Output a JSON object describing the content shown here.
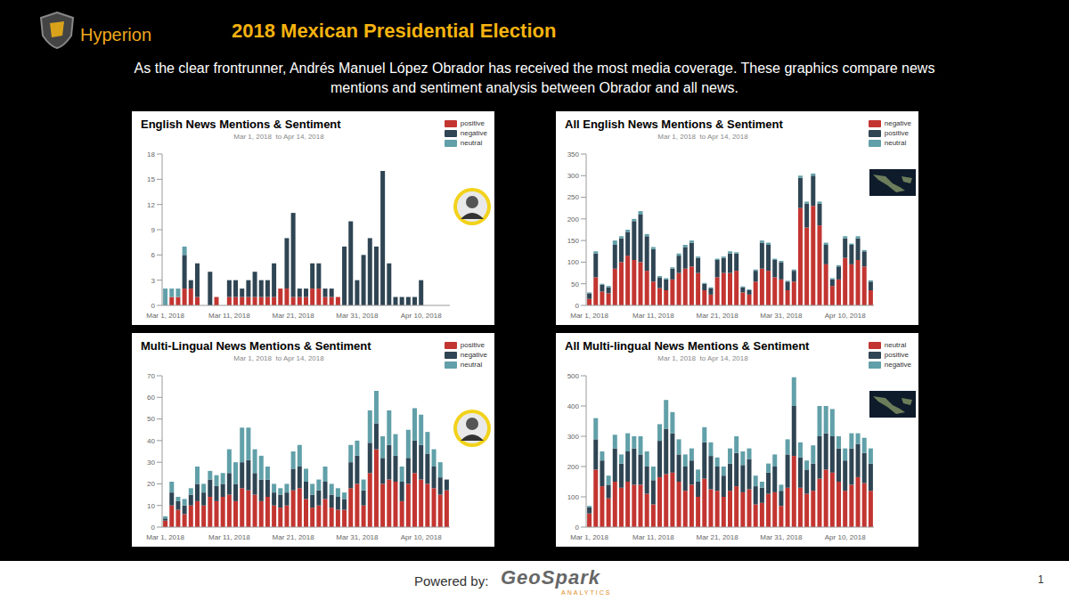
{
  "header": {
    "brand": "Hyperion",
    "title": "2018 Mexican Presidential Election",
    "subtitle": "As the clear frontrunner, Andrés Manuel López Obrador has received the most media coverage. These graphics compare news mentions and sentiment analysis between Obrador and all news."
  },
  "chart_data": [
    {
      "type": "bar",
      "title": "English News Mentions & Sentiment",
      "subtitle": "Mar 1, 2018  to Apr 14, 2018",
      "stacked": true,
      "grid": false,
      "legend": "top-right",
      "categories": [
        "Mar 1, 2018",
        null,
        null,
        null,
        null,
        null,
        null,
        null,
        null,
        null,
        "Mar 11, 2018",
        null,
        null,
        null,
        null,
        null,
        null,
        null,
        null,
        null,
        "Mar 21, 2018",
        null,
        null,
        null,
        null,
        null,
        null,
        null,
        null,
        null,
        "Mar 31, 2018",
        null,
        null,
        null,
        null,
        null,
        null,
        null,
        null,
        null,
        "Apr 10, 2018",
        null,
        null,
        null,
        null
      ],
      "series": [
        {
          "name": "positive",
          "color": "#c23531",
          "values": [
            0,
            1,
            1,
            2,
            2,
            1,
            0,
            0,
            1,
            0,
            1,
            1,
            1,
            1,
            1,
            1,
            1,
            1,
            2,
            2,
            1,
            1,
            1,
            2,
            2,
            1,
            1,
            1,
            0,
            0,
            0,
            0,
            0,
            0,
            0,
            0,
            0,
            0,
            0,
            0,
            0,
            0,
            0,
            0,
            0
          ]
        },
        {
          "name": "negative",
          "color": "#2f4554",
          "values": [
            0,
            0,
            0,
            4,
            1,
            4,
            0,
            4,
            0,
            0,
            2,
            2,
            1,
            2,
            3,
            2,
            2,
            4,
            0,
            6,
            10,
            1,
            1,
            3,
            3,
            1,
            1,
            0,
            7,
            10,
            3,
            6,
            8,
            7,
            16,
            5,
            1,
            1,
            1,
            1,
            3,
            0,
            0,
            0,
            0
          ]
        },
        {
          "name": "neutral",
          "color": "#61a0a8",
          "values": [
            2,
            1,
            1,
            1,
            0,
            0,
            0,
            0,
            0,
            0,
            0,
            0,
            0,
            0,
            0,
            0,
            0,
            0,
            0,
            0,
            0,
            0,
            0,
            0,
            0,
            0,
            0,
            0,
            0,
            0,
            0,
            0,
            0,
            0,
            0,
            0,
            0,
            0,
            0,
            0,
            0,
            0,
            0,
            0,
            0
          ]
        }
      ],
      "ylim": [
        0,
        18
      ],
      "yticks": [
        0,
        3,
        6,
        9,
        12,
        15,
        18
      ]
    },
    {
      "type": "bar",
      "title": "All English News Mentions & Sentiment",
      "subtitle": "Mar 1, 2018  to Apr 14, 2018",
      "stacked": true,
      "grid": false,
      "legend": "top-right",
      "categories": [
        "Mar 1, 2018",
        null,
        null,
        null,
        null,
        null,
        null,
        null,
        null,
        null,
        "Mar 11, 2018",
        null,
        null,
        null,
        null,
        null,
        null,
        null,
        null,
        null,
        "Mar 21, 2018",
        null,
        null,
        null,
        null,
        null,
        null,
        null,
        null,
        null,
        "Mar 31, 2018",
        null,
        null,
        null,
        null,
        null,
        null,
        null,
        null,
        null,
        "Apr 10, 2018",
        null,
        null,
        null,
        null
      ],
      "series": [
        {
          "name": "negative",
          "color": "#c23531",
          "values": [
            15,
            65,
            32,
            28,
            85,
            100,
            115,
            105,
            100,
            80,
            55,
            40,
            35,
            60,
            75,
            85,
            90,
            75,
            35,
            25,
            65,
            75,
            75,
            80,
            30,
            25,
            55,
            85,
            80,
            65,
            60,
            35,
            55,
            225,
            180,
            230,
            185,
            95,
            45,
            60,
            110,
            95,
            105,
            90,
            35
          ]
        },
        {
          "name": "positive",
          "color": "#2f4554",
          "values": [
            13,
            55,
            16,
            14,
            55,
            55,
            55,
            90,
            110,
            80,
            75,
            25,
            25,
            25,
            40,
            50,
            55,
            35,
            15,
            15,
            40,
            35,
            45,
            40,
            12,
            10,
            25,
            60,
            60,
            40,
            40,
            20,
            25,
            70,
            55,
            70,
            50,
            45,
            15,
            30,
            45,
            45,
            50,
            35,
            20
          ]
        },
        {
          "name": "neutral",
          "color": "#61a0a8",
          "values": [
            2,
            5,
            2,
            3,
            10,
            5,
            5,
            5,
            8,
            5,
            5,
            3,
            3,
            3,
            5,
            5,
            5,
            3,
            2,
            2,
            3,
            3,
            5,
            3,
            2,
            2,
            3,
            5,
            5,
            3,
            3,
            2,
            3,
            5,
            5,
            5,
            5,
            5,
            3,
            3,
            5,
            3,
            5,
            3,
            3
          ]
        }
      ],
      "ylim": [
        0,
        350
      ],
      "yticks": [
        0,
        50,
        100,
        150,
        200,
        250,
        300,
        350
      ]
    },
    {
      "type": "bar",
      "title": "Multi-Lingual News Mentions & Sentiment",
      "subtitle": "Mar 1, 2018  to Apr 14, 2018",
      "stacked": true,
      "grid": false,
      "legend": "top-right",
      "categories": [
        "Mar 1, 2018",
        null,
        null,
        null,
        null,
        null,
        null,
        null,
        null,
        null,
        "Mar 11, 2018",
        null,
        null,
        null,
        null,
        null,
        null,
        null,
        null,
        null,
        "Mar 21, 2018",
        null,
        null,
        null,
        null,
        null,
        null,
        null,
        null,
        null,
        "Mar 31, 2018",
        null,
        null,
        null,
        null,
        null,
        null,
        null,
        null,
        null,
        "Apr 10, 2018",
        null,
        null,
        null,
        null
      ],
      "series": [
        {
          "name": "positive",
          "color": "#c23531",
          "values": [
            3,
            10,
            8,
            6,
            10,
            12,
            10,
            14,
            12,
            14,
            15,
            12,
            18,
            17,
            15,
            12,
            14,
            10,
            9,
            10,
            17,
            18,
            13,
            9,
            10,
            13,
            9,
            8,
            8,
            18,
            20,
            10,
            25,
            36,
            20,
            22,
            21,
            12,
            20,
            25,
            22,
            20,
            18,
            15,
            17
          ]
        },
        {
          "name": "negative",
          "color": "#2f4554",
          "values": [
            1,
            6,
            4,
            4,
            5,
            8,
            6,
            8,
            7,
            6,
            10,
            8,
            12,
            14,
            10,
            10,
            8,
            6,
            6,
            6,
            10,
            10,
            8,
            6,
            7,
            8,
            6,
            6,
            5,
            12,
            13,
            7,
            14,
            12,
            12,
            16,
            12,
            9,
            12,
            15,
            16,
            14,
            10,
            8,
            5
          ]
        },
        {
          "name": "neutral",
          "color": "#61a0a8",
          "values": [
            1,
            5,
            2,
            3,
            3,
            8,
            4,
            4,
            5,
            5,
            11,
            10,
            16,
            15,
            11,
            11,
            6,
            4,
            3,
            4,
            8,
            10,
            6,
            5,
            5,
            7,
            5,
            4,
            3,
            8,
            7,
            5,
            15,
            15,
            10,
            16,
            10,
            7,
            13,
            15,
            14,
            10,
            8,
            7,
            0
          ]
        }
      ],
      "ylim": [
        0,
        70
      ],
      "yticks": [
        0,
        10,
        20,
        30,
        40,
        50,
        60,
        70
      ]
    },
    {
      "type": "bar",
      "title": "All Multi-lingual News Mentions & Sentiment",
      "subtitle": "Mar 1, 2018  to Apr 14, 2018",
      "stacked": true,
      "grid": false,
      "legend": "top-right",
      "categories": [
        "Mar 1, 2018",
        null,
        null,
        null,
        null,
        null,
        null,
        null,
        null,
        null,
        "Mar 11, 2018",
        null,
        null,
        null,
        null,
        null,
        null,
        null,
        null,
        null,
        "Mar 21, 2018",
        null,
        null,
        null,
        null,
        null,
        null,
        null,
        null,
        null,
        "Mar 31, 2018",
        null,
        null,
        null,
        null,
        null,
        null,
        null,
        null,
        null,
        "Apr 10, 2018",
        null,
        null,
        null,
        null
      ],
      "series": [
        {
          "name": "neutral",
          "color": "#c23531",
          "values": [
            45,
            190,
            135,
            95,
            150,
            130,
            150,
            140,
            140,
            110,
            75,
            165,
            175,
            180,
            150,
            120,
            140,
            100,
            160,
            125,
            120,
            100,
            120,
            135,
            115,
            125,
            75,
            80,
            110,
            115,
            70,
            130,
            235,
            130,
            110,
            120,
            160,
            190,
            180,
            150,
            120,
            140,
            165,
            145,
            120
          ]
        },
        {
          "name": "positive",
          "color": "#2f4554",
          "values": [
            20,
            100,
            85,
            45,
            110,
            80,
            100,
            120,
            100,
            90,
            80,
            120,
            150,
            130,
            90,
            80,
            80,
            50,
            120,
            110,
            80,
            70,
            90,
            110,
            90,
            100,
            60,
            50,
            70,
            85,
            50,
            110,
            165,
            100,
            80,
            90,
            140,
            120,
            120,
            110,
            100,
            120,
            110,
            100,
            90
          ]
        },
        {
          "name": "negative",
          "color": "#61a0a8",
          "values": [
            5,
            70,
            30,
            30,
            45,
            30,
            60,
            40,
            60,
            50,
            45,
            55,
            95,
            70,
            50,
            40,
            40,
            40,
            50,
            45,
            30,
            30,
            50,
            55,
            45,
            35,
            35,
            20,
            30,
            40,
            20,
            50,
            95,
            50,
            30,
            60,
            100,
            90,
            90,
            40,
            40,
            50,
            35,
            50,
            50
          ]
        }
      ],
      "ylim": [
        0,
        500
      ],
      "yticks": [
        0,
        100,
        200,
        300,
        400,
        500
      ]
    }
  ],
  "footer": {
    "powered_by": "Powered by:",
    "logo": "GeoSpark",
    "logo_sub": "ANALYTICS",
    "page": 1
  }
}
